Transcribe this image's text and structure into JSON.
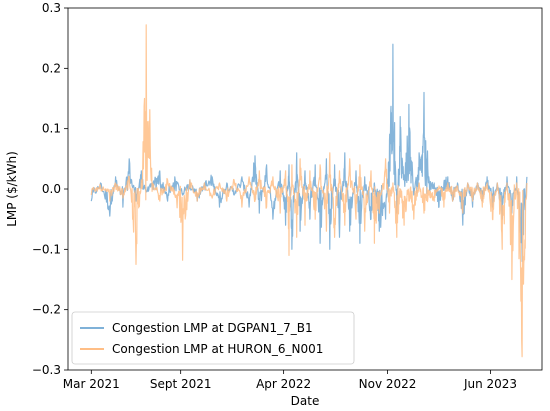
{
  "chart_data": {
    "type": "line",
    "title": "",
    "xlabel": "Date",
    "ylabel": "LMP ($/kWh)",
    "xlim": [
      "2021-01-12",
      "2023-09-15"
    ],
    "ylim": [
      -0.3,
      0.3
    ],
    "x_ticks": [
      {
        "date": "2021-03-01",
        "label": "Mar 2021"
      },
      {
        "date": "2021-09-01",
        "label": "Sept 2021"
      },
      {
        "date": "2022-04-01",
        "label": "Apr 2022"
      },
      {
        "date": "2022-11-01",
        "label": "Nov 2022"
      },
      {
        "date": "2023-06-01",
        "label": "Jun 2023"
      }
    ],
    "y_ticks": [
      {
        "value": -0.3,
        "label": "−0.3"
      },
      {
        "value": -0.2,
        "label": "−0.2"
      },
      {
        "value": -0.1,
        "label": "−0.1"
      },
      {
        "value": 0.0,
        "label": "0.0"
      },
      {
        "value": 0.1,
        "label": "0.1"
      },
      {
        "value": 0.2,
        "label": "0.2"
      },
      {
        "value": 0.3,
        "label": "0.3"
      }
    ],
    "grid": false,
    "legend_position": "lower-left",
    "series": [
      {
        "name": "Congestion LMP at DGPAN1_7_B1",
        "color": "#7fb1d8",
        "x": [
          "2021-03-01",
          "2021-03-20",
          "2021-04-08",
          "2021-04-20",
          "2021-05-05",
          "2021-05-18",
          "2021-06-01",
          "2021-06-12",
          "2021-06-22",
          "2021-07-05",
          "2021-07-20",
          "2021-08-05",
          "2021-08-20",
          "2021-09-05",
          "2021-09-20",
          "2021-10-05",
          "2021-10-20",
          "2021-11-05",
          "2021-11-20",
          "2021-12-05",
          "2021-12-20",
          "2022-01-05",
          "2022-01-20",
          "2022-02-01",
          "2022-02-10",
          "2022-02-25",
          "2022-03-10",
          "2022-03-25",
          "2022-04-05",
          "2022-04-12",
          "2022-04-18",
          "2022-04-28",
          "2022-05-05",
          "2022-05-15",
          "2022-05-25",
          "2022-06-05",
          "2022-06-15",
          "2022-06-28",
          "2022-07-05",
          "2022-07-15",
          "2022-07-25",
          "2022-08-05",
          "2022-08-15",
          "2022-08-28",
          "2022-09-05",
          "2022-09-15",
          "2022-09-28",
          "2022-10-05",
          "2022-10-15",
          "2022-10-28",
          "2022-11-05",
          "2022-11-12",
          "2022-11-20",
          "2022-11-27",
          "2022-12-05",
          "2022-12-15",
          "2022-12-25",
          "2023-01-05",
          "2023-01-15",
          "2023-01-25",
          "2023-02-05",
          "2023-02-15",
          "2023-02-25",
          "2023-03-05",
          "2023-03-15",
          "2023-03-25",
          "2023-04-05",
          "2023-04-15",
          "2023-04-25",
          "2023-05-05",
          "2023-05-15",
          "2023-05-25",
          "2023-06-05",
          "2023-06-15",
          "2023-06-25",
          "2023-07-05",
          "2023-07-15",
          "2023-07-25",
          "2023-08-05",
          "2023-08-15"
        ],
        "y": [
          -0.02,
          0.01,
          -0.045,
          0.02,
          -0.03,
          0.05,
          -0.02,
          0.03,
          -0.005,
          0.01,
          0.03,
          -0.02,
          0.02,
          -0.01,
          0.015,
          -0.02,
          0.01,
          0.02,
          -0.03,
          0.01,
          -0.01,
          0.02,
          -0.03,
          0.055,
          -0.04,
          0.04,
          -0.05,
          0.03,
          -0.06,
          0.04,
          -0.1,
          0.06,
          -0.07,
          0.03,
          -0.05,
          0.04,
          -0.09,
          0.05,
          -0.1,
          0.04,
          -0.08,
          0.06,
          -0.07,
          0.03,
          -0.09,
          0.02,
          -0.05,
          0.01,
          -0.07,
          -0.05,
          0.08,
          0.24,
          -0.04,
          0.12,
          0.02,
          0.14,
          -0.01,
          0.06,
          0.16,
          0.02,
          0.01,
          -0.03,
          0.01,
          0.02,
          -0.02,
          0.01,
          -0.06,
          0.01,
          -0.03,
          0.01,
          -0.02,
          0.02,
          -0.03,
          0.01,
          -0.05,
          0.02,
          -0.04,
          0.02,
          -0.12,
          0.02
        ]
      },
      {
        "name": "Congestion LMP at HURON_6_N001",
        "color": "#ffbe86",
        "x": [
          "2021-03-01",
          "2021-03-20",
          "2021-04-08",
          "2021-04-20",
          "2021-05-05",
          "2021-05-18",
          "2021-06-01",
          "2021-06-12",
          "2021-06-22",
          "2021-07-05",
          "2021-07-20",
          "2021-08-05",
          "2021-08-20",
          "2021-09-05",
          "2021-09-20",
          "2021-10-05",
          "2021-10-20",
          "2021-11-05",
          "2021-11-20",
          "2021-12-05",
          "2021-12-20",
          "2022-01-05",
          "2022-01-20",
          "2022-02-01",
          "2022-02-10",
          "2022-02-25",
          "2022-03-10",
          "2022-03-25",
          "2022-04-05",
          "2022-04-12",
          "2022-04-18",
          "2022-04-28",
          "2022-05-05",
          "2022-05-15",
          "2022-05-25",
          "2022-06-05",
          "2022-06-15",
          "2022-06-28",
          "2022-07-05",
          "2022-07-15",
          "2022-07-25",
          "2022-08-05",
          "2022-08-15",
          "2022-08-28",
          "2022-09-05",
          "2022-09-15",
          "2022-09-28",
          "2022-10-05",
          "2022-10-15",
          "2022-10-28",
          "2022-11-05",
          "2022-11-12",
          "2022-11-20",
          "2022-11-27",
          "2022-12-05",
          "2022-12-15",
          "2022-12-25",
          "2023-01-05",
          "2023-01-15",
          "2023-01-25",
          "2023-02-05",
          "2023-02-15",
          "2023-02-25",
          "2023-03-05",
          "2023-03-15",
          "2023-03-25",
          "2023-04-05",
          "2023-04-15",
          "2023-04-25",
          "2023-05-05",
          "2023-05-15",
          "2023-05-25",
          "2023-06-05",
          "2023-06-15",
          "2023-06-25",
          "2023-07-05",
          "2023-07-15",
          "2023-07-25",
          "2023-08-05",
          "2023-08-15"
        ],
        "y": [
          -0.01,
          0.005,
          -0.02,
          0.01,
          -0.015,
          0.02,
          -0.125,
          0.015,
          0.272,
          0.01,
          -0.02,
          0.015,
          -0.01,
          -0.118,
          0.015,
          -0.02,
          0.01,
          -0.015,
          0.01,
          -0.02,
          0.015,
          -0.03,
          0.02,
          -0.02,
          0.03,
          -0.03,
          0.02,
          -0.04,
          0.03,
          -0.11,
          0.04,
          -0.08,
          0.05,
          -0.06,
          0.03,
          -0.05,
          0.04,
          -0.07,
          0.06,
          -0.08,
          0.03,
          -0.06,
          0.05,
          -0.05,
          0.04,
          -0.07,
          0.03,
          -0.09,
          -0.04,
          0.05,
          -0.04,
          0.01,
          -0.08,
          -0.01,
          -0.06,
          -0.02,
          -0.05,
          0.01,
          -0.04,
          -0.01,
          -0.02,
          0.005,
          -0.03,
          0.01,
          -0.02,
          0.005,
          -0.04,
          0.01,
          -0.02,
          0.01,
          -0.03,
          0.01,
          -0.05,
          0.01,
          -0.1,
          0.01,
          -0.15,
          0.01,
          -0.278,
          0.01
        ]
      }
    ]
  }
}
